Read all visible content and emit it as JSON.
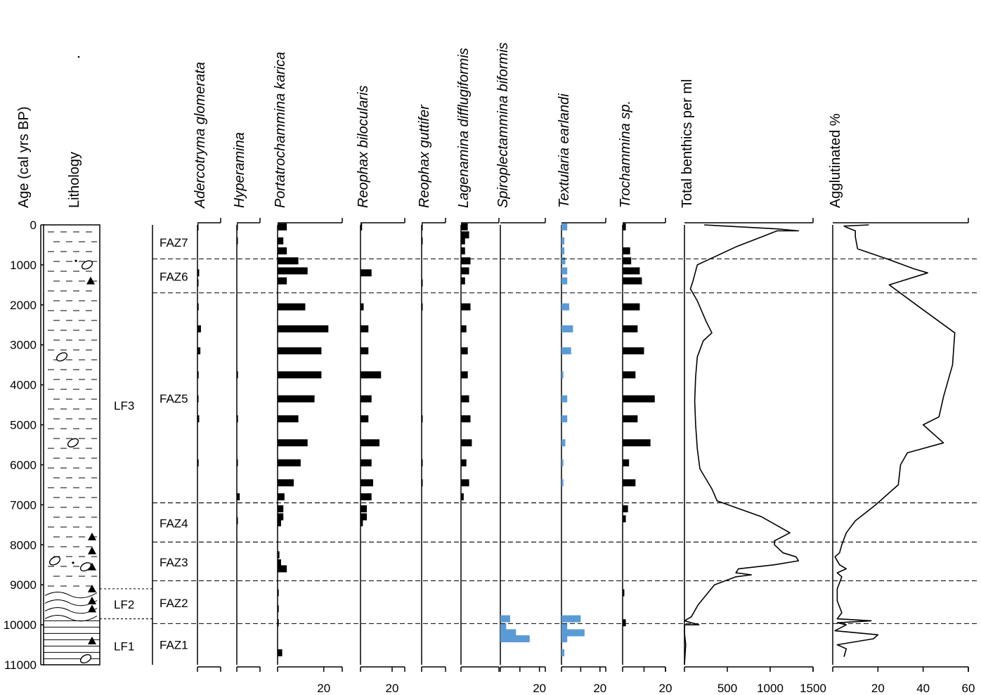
{
  "age_axis": {
    "label": "Age (cal yrs BP)",
    "min": 0,
    "max": 11000,
    "ticks": [
      "0",
      "1000",
      "2000",
      "3000",
      "4000",
      "5000",
      "6000",
      "7000",
      "8000",
      "9000",
      "10000",
      "11000"
    ]
  },
  "lithology": {
    "label": "Lithology",
    "units": [
      {
        "label": "LF3",
        "top": 0,
        "bottom": 9100
      },
      {
        "label": "LF2",
        "top": 9100,
        "bottom": 9850
      },
      {
        "label": "LF1",
        "top": 9850,
        "bottom": 11000
      }
    ]
  },
  "zones": [
    {
      "label": "FAZ7",
      "top": 0,
      "bottom": 850
    },
    {
      "label": "FAZ6",
      "top": 850,
      "bottom": 1700
    },
    {
      "label": "FAZ5",
      "top": 1700,
      "bottom": 6950
    },
    {
      "label": "FAZ4",
      "top": 6950,
      "bottom": 7930
    },
    {
      "label": "FAZ3",
      "top": 7930,
      "bottom": 8900
    },
    {
      "label": "FAZ2",
      "top": 8900,
      "bottom": 9970
    },
    {
      "label": "FAZ1",
      "top": 9970,
      "bottom": 11000
    }
  ],
  "colors": {
    "black_bar": "#000000",
    "blue_bar": "#5b9bd5",
    "line": "#000000"
  },
  "chart_data": [
    {
      "type": "bar",
      "name": "Adercotryma glomerata",
      "ticks": [],
      "color": "#000000",
      "ages": [
        50,
        1200,
        1450,
        2050,
        2600,
        3150,
        3750,
        4350,
        4850,
        5950
      ],
      "values": [
        1,
        3,
        1.5,
        2,
        6,
        5,
        2,
        1.5,
        3,
        2
      ]
    },
    {
      "type": "bar",
      "name": "Hyperamina",
      "ticks": [],
      "color": "#000000",
      "ages": [
        50,
        400,
        3750,
        4850,
        5950,
        6800,
        7400
      ],
      "values": [
        1,
        0.5,
        2,
        2,
        0.5,
        5,
        1
      ]
    },
    {
      "type": "bar",
      "name": "Portatrochammina karica",
      "ticks": [
        "20"
      ],
      "color": "#000000",
      "ages": [
        50,
        400,
        650,
        900,
        1150,
        1400,
        2050,
        2600,
        3150,
        3750,
        4350,
        4850,
        5450,
        5950,
        6450,
        6800,
        7100,
        7300,
        7450,
        8250,
        8450,
        8600,
        9200,
        9600,
        9950,
        10700
      ],
      "values": [
        4,
        2.5,
        4,
        9,
        13,
        4,
        12,
        22,
        19,
        19,
        16,
        9,
        13,
        10,
        7,
        3,
        2.5,
        2.5,
        1.5,
        0.8,
        1.5,
        4,
        0.5,
        0.5,
        0.5,
        2
      ]
    },
    {
      "type": "bar",
      "name": "Reophax bilocularis",
      "ticks": [
        "20"
      ],
      "color": "#000000",
      "ages": [
        50,
        1200,
        2050,
        2600,
        3150,
        3750,
        4350,
        4850,
        5450,
        5950,
        6450,
        6800,
        7100,
        7300,
        7450
      ],
      "values": [
        1,
        7,
        2,
        5,
        5,
        13,
        7,
        5,
        12,
        7,
        8,
        7,
        4,
        4,
        1.5
      ]
    },
    {
      "type": "bar",
      "name": "Reophax guttifer",
      "ticks": [],
      "color": "#000000",
      "ages": [
        50,
        400,
        1450,
        2050,
        4850,
        5950,
        6450
      ],
      "values": [
        1,
        0.5,
        1,
        1,
        1,
        1,
        0.8
      ]
    },
    {
      "type": "bar",
      "name": "Lagenamina difflugiformis",
      "ticks": [],
      "color": "#000000",
      "ages": [
        50,
        250,
        400,
        650,
        900,
        1150,
        1400,
        2050,
        2600,
        3150,
        3750,
        4350,
        4850,
        5450,
        5950,
        6450,
        6800
      ],
      "values": [
        5,
        6,
        3,
        3,
        7,
        6,
        3,
        7,
        4,
        5,
        5,
        6,
        7,
        8,
        4,
        6,
        2
      ]
    },
    {
      "type": "bar",
      "name": "Spiroplectammina biformis",
      "ticks": [
        "20"
      ],
      "color": "#5b9bd5",
      "ages": [
        9850,
        10050,
        10200,
        10350
      ],
      "values": [
        5,
        3,
        8,
        15
      ]
    },
    {
      "type": "bar",
      "name": "Textularia earlandi",
      "ticks": [
        "20"
      ],
      "color": "#5b9bd5",
      "ages": [
        50,
        400,
        650,
        900,
        1150,
        1400,
        2050,
        2600,
        3150,
        3750,
        4350,
        4850,
        5450,
        5950,
        6450,
        9850,
        10050,
        10200,
        10350,
        10700
      ],
      "values": [
        3,
        1.5,
        1.5,
        2,
        3,
        3,
        4,
        6,
        5,
        1,
        3,
        3,
        2,
        1,
        1,
        10,
        3,
        12,
        3,
        1.5
      ]
    },
    {
      "type": "bar",
      "name": "Trochammina sp.",
      "ticks": [
        "20"
      ],
      "color": "#000000",
      "ages": [
        50,
        650,
        900,
        1150,
        1400,
        2050,
        2600,
        3150,
        3750,
        4350,
        4850,
        5450,
        5950,
        6450,
        7100,
        7350,
        9200,
        9950
      ],
      "values": [
        1.5,
        3.5,
        4,
        8,
        9,
        8,
        7,
        10,
        6,
        15,
        7,
        13,
        3,
        6,
        2.5,
        1.5,
        0.8,
        1.5
      ]
    },
    {
      "type": "line",
      "name": "Total benthics per ml",
      "ticks": [
        "500",
        "1000",
        "1500"
      ],
      "xmax": 1500,
      "points": [
        [
          0,
          230
        ],
        [
          100,
          1080
        ],
        [
          150,
          1330
        ],
        [
          150,
          1080
        ],
        [
          300,
          900
        ],
        [
          550,
          600
        ],
        [
          900,
          250
        ],
        [
          1000,
          150
        ],
        [
          1400,
          100
        ],
        [
          1600,
          70
        ],
        [
          1900,
          150
        ],
        [
          2400,
          250
        ],
        [
          2700,
          320
        ],
        [
          2900,
          220
        ],
        [
          3300,
          150
        ],
        [
          3800,
          130
        ],
        [
          4400,
          120
        ],
        [
          5000,
          130
        ],
        [
          5600,
          150
        ],
        [
          6100,
          180
        ],
        [
          6600,
          320
        ],
        [
          6900,
          380
        ],
        [
          7300,
          900
        ],
        [
          7700,
          1230
        ],
        [
          7900,
          1050
        ],
        [
          8000,
          1050
        ],
        [
          8200,
          1150
        ],
        [
          8300,
          1300
        ],
        [
          8400,
          1330
        ],
        [
          8500,
          1050
        ],
        [
          8600,
          630
        ],
        [
          8700,
          600
        ],
        [
          8750,
          780
        ],
        [
          8800,
          600
        ],
        [
          9000,
          350
        ],
        [
          9500,
          160
        ],
        [
          9800,
          80
        ],
        [
          9900,
          0
        ],
        [
          9950,
          80
        ],
        [
          10000,
          170
        ],
        [
          10000,
          0
        ],
        [
          10200,
          0
        ],
        [
          10500,
          15
        ],
        [
          11000,
          0
        ]
      ]
    },
    {
      "type": "line",
      "name": "Agglutinated %",
      "ticks": [
        "20",
        "40",
        "60"
      ],
      "xmax": 60,
      "points": [
        [
          0,
          16
        ],
        [
          30,
          5
        ],
        [
          60,
          6
        ],
        [
          150,
          10
        ],
        [
          300,
          10
        ],
        [
          600,
          11
        ],
        [
          850,
          24
        ],
        [
          1100,
          36
        ],
        [
          1200,
          42
        ],
        [
          1500,
          25
        ],
        [
          2000,
          37
        ],
        [
          2700,
          54
        ],
        [
          3500,
          53
        ],
        [
          4300,
          49
        ],
        [
          4800,
          47
        ],
        [
          5000,
          40
        ],
        [
          5450,
          49
        ],
        [
          5700,
          33
        ],
        [
          6000,
          30
        ],
        [
          6500,
          29
        ],
        [
          7000,
          19
        ],
        [
          7400,
          10
        ],
        [
          7700,
          6
        ],
        [
          8000,
          4
        ],
        [
          8200,
          3
        ],
        [
          8300,
          1
        ],
        [
          8500,
          3
        ],
        [
          8600,
          6
        ],
        [
          8700,
          2
        ],
        [
          8800,
          4
        ],
        [
          9100,
          2
        ],
        [
          9400,
          2
        ],
        [
          9700,
          4
        ],
        [
          9850,
          2
        ],
        [
          9900,
          17
        ],
        [
          9950,
          2
        ],
        [
          10000,
          6
        ],
        [
          10150,
          1
        ],
        [
          10250,
          20
        ],
        [
          10350,
          18
        ],
        [
          10500,
          2
        ],
        [
          10600,
          6
        ],
        [
          10800,
          5
        ]
      ]
    }
  ]
}
